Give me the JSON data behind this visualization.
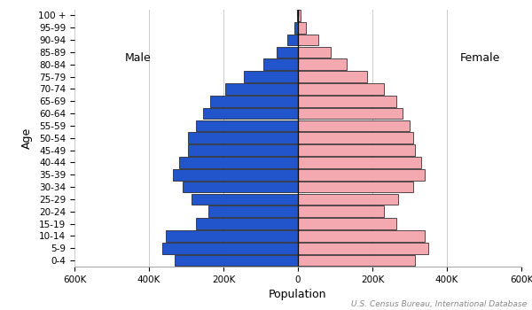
{
  "age_groups": [
    "0-4",
    "5-9",
    "10-14",
    "15-19",
    "20-24",
    "25-29",
    "30-34",
    "35-39",
    "40-44",
    "45-49",
    "50-54",
    "55-59",
    "60-64",
    "65-69",
    "70-74",
    "75-79",
    "80-84",
    "85-89",
    "90-94",
    "95-99",
    "100 +"
  ],
  "male": [
    330000,
    365000,
    355000,
    275000,
    240000,
    285000,
    310000,
    335000,
    320000,
    295000,
    295000,
    275000,
    255000,
    235000,
    195000,
    145000,
    92000,
    57000,
    28000,
    10000,
    3500
  ],
  "female": [
    315000,
    350000,
    340000,
    265000,
    230000,
    270000,
    310000,
    340000,
    330000,
    315000,
    310000,
    300000,
    280000,
    265000,
    230000,
    185000,
    130000,
    88000,
    55000,
    22000,
    7000
  ],
  "male_color": "#2255CC",
  "female_color": "#F4A8B0",
  "bar_edgecolor": "#111111",
  "bar_edgewidth": 0.5,
  "xlabel": "Population",
  "ylabel": "Age",
  "xlim": 600000,
  "male_label": "Male",
  "female_label": "Female",
  "source_text": "U.S. Census Bureau, International Database",
  "tick_labels": [
    "600K",
    "400K",
    "200K",
    "0",
    "200K",
    "400K",
    "600K"
  ],
  "bg_color": "#ffffff",
  "grid_color": "#cccccc",
  "label_fontsize": 9,
  "tick_fontsize": 7.5,
  "source_fontsize": 6.5,
  "male_label_fontsize": 9,
  "female_label_fontsize": 9
}
